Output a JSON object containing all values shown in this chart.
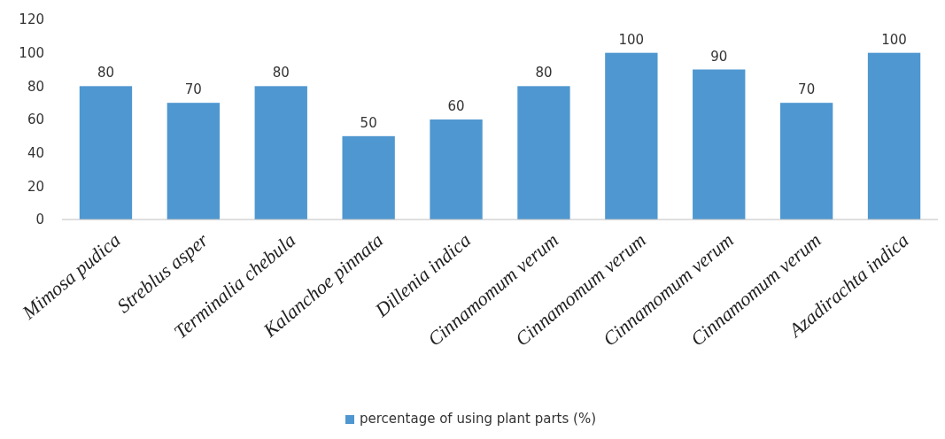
{
  "chart_data": {
    "type": "bar",
    "categories": [
      "Mimosa pudica",
      "Streblus asper",
      "Terminalia chebula",
      "Kalanchoe pinnata",
      "Dillenia indica",
      "Cinnamomum verum",
      "Cinnamomum verum",
      "Cinnamomum verum",
      "Cinnamomum verum",
      "Azadirachta indica"
    ],
    "series": [
      {
        "name": "percentage of using plant parts (%)",
        "color": "#4f97d0",
        "values": [
          80,
          70,
          80,
          50,
          60,
          80,
          100,
          90,
          70,
          100
        ]
      }
    ],
    "ylim": [
      0,
      120
    ],
    "yticks": [
      0,
      20,
      40,
      60,
      80,
      100,
      120
    ],
    "grid": false,
    "data_labels": true,
    "legend": "bottom"
  }
}
